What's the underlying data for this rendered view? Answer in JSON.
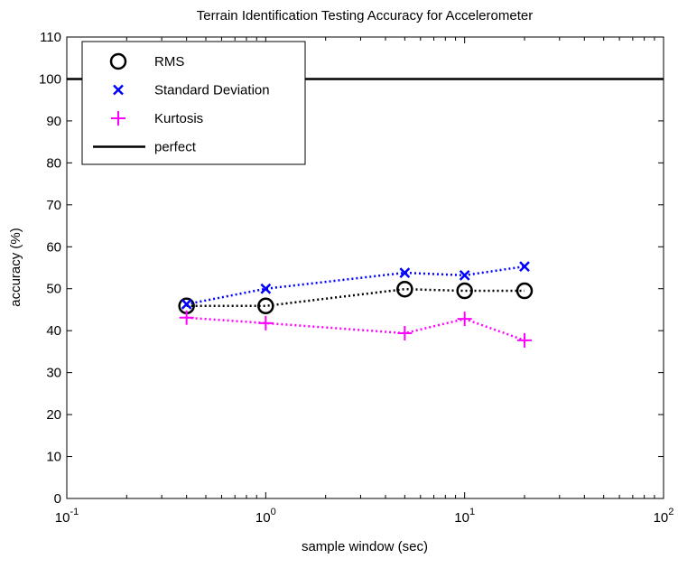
{
  "chart_data": {
    "type": "line",
    "title": "Terrain Identification Testing Accuracy for Accelerometer",
    "x_label": "sample window (sec)",
    "y_label": "accuracy (%)",
    "x_scale": "log",
    "x": [
      0.4,
      1,
      5,
      10,
      20
    ],
    "series": [
      {
        "name": "RMS",
        "color": "#000000",
        "marker": "circle",
        "linestyle": "dotted",
        "values": [
          45.9,
          45.9,
          49.9,
          49.5,
          49.5
        ]
      },
      {
        "name": "Standard Deviation",
        "color": "#0000ff",
        "marker": "x",
        "linestyle": "dotted",
        "values": [
          46.3,
          50.0,
          53.8,
          53.2,
          55.3
        ]
      },
      {
        "name": "Kurtosis",
        "color": "#ff00ff",
        "marker": "plus",
        "linestyle": "dotted",
        "values": [
          43.1,
          41.8,
          39.4,
          42.8,
          37.7
        ]
      },
      {
        "name": "perfect",
        "color": "#000000",
        "marker": "none",
        "linestyle": "solid",
        "x": [
          0.1,
          100
        ],
        "values": [
          100,
          100
        ]
      }
    ],
    "xlim": [
      0.1,
      100
    ],
    "xticks": [
      {
        "value": 0.1,
        "label": "10^-1"
      },
      {
        "value": 1,
        "label": "10^0"
      },
      {
        "value": 10,
        "label": "10^1"
      },
      {
        "value": 100,
        "label": "10^2"
      }
    ],
    "ylim": [
      0,
      110
    ],
    "yticks": [
      0,
      10,
      20,
      30,
      40,
      50,
      60,
      70,
      80,
      90,
      100,
      110
    ],
    "grid": false,
    "legend": "upper-left"
  }
}
